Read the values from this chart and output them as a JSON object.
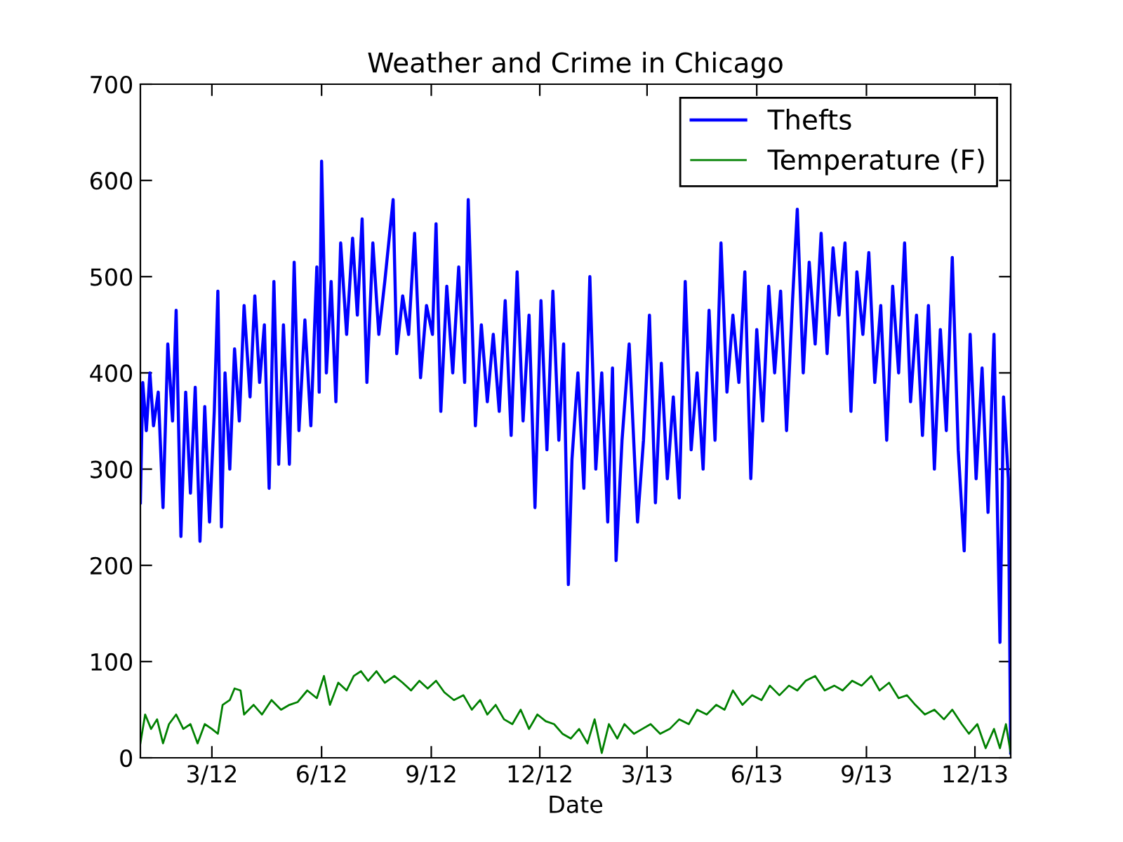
{
  "chart_data": {
    "type": "line",
    "title": "Weather and Crime in Chicago",
    "xlabel": "Date",
    "xlim": [
      "2012-01-01",
      "2013-12-31"
    ],
    "ylim": [
      0,
      700
    ],
    "yticks": [
      0,
      100,
      200,
      300,
      400,
      500,
      600,
      700
    ],
    "xticks": [
      {
        "value": "2012-03-01",
        "label": "3/12"
      },
      {
        "value": "2012-06-01",
        "label": "6/12"
      },
      {
        "value": "2012-09-01",
        "label": "9/12"
      },
      {
        "value": "2012-12-01",
        "label": "12/12"
      },
      {
        "value": "2013-03-01",
        "label": "3/13"
      },
      {
        "value": "2013-06-01",
        "label": "6/13"
      },
      {
        "value": "2013-09-01",
        "label": "9/13"
      },
      {
        "value": "2013-12-01",
        "label": "12/13"
      }
    ],
    "grid": false,
    "legend": "top right",
    "marker": "none",
    "line_style": "solid",
    "series": [
      {
        "name": "Thefts",
        "color": "#0000ff",
        "x": [
          "2012-01-01",
          "2012-01-03",
          "2012-01-06",
          "2012-01-09",
          "2012-01-12",
          "2012-01-16",
          "2012-01-20",
          "2012-01-24",
          "2012-01-28",
          "2012-01-31",
          "2012-02-04",
          "2012-02-08",
          "2012-02-12",
          "2012-02-16",
          "2012-02-20",
          "2012-02-24",
          "2012-02-28",
          "2012-03-03",
          "2012-03-06",
          "2012-03-09",
          "2012-03-12",
          "2012-03-16",
          "2012-03-20",
          "2012-03-24",
          "2012-03-28",
          "2012-04-02",
          "2012-04-06",
          "2012-04-10",
          "2012-04-14",
          "2012-04-18",
          "2012-04-22",
          "2012-04-26",
          "2012-04-30",
          "2012-05-05",
          "2012-05-09",
          "2012-05-13",
          "2012-05-18",
          "2012-05-23",
          "2012-05-28",
          "2012-05-30",
          "2012-06-01",
          "2012-06-05",
          "2012-06-09",
          "2012-06-13",
          "2012-06-17",
          "2012-06-22",
          "2012-06-27",
          "2012-07-01",
          "2012-07-05",
          "2012-07-09",
          "2012-07-14",
          "2012-07-19",
          "2012-07-24",
          "2012-07-31",
          "2012-08-03",
          "2012-08-08",
          "2012-08-13",
          "2012-08-18",
          "2012-08-23",
          "2012-08-28",
          "2012-09-02",
          "2012-09-05",
          "2012-09-09",
          "2012-09-14",
          "2012-09-19",
          "2012-09-24",
          "2012-09-29",
          "2012-10-02",
          "2012-10-08",
          "2012-10-13",
          "2012-10-18",
          "2012-10-23",
          "2012-10-28",
          "2012-11-02",
          "2012-11-07",
          "2012-11-12",
          "2012-11-17",
          "2012-11-22",
          "2012-11-27",
          "2012-12-02",
          "2012-12-07",
          "2012-12-12",
          "2012-12-17",
          "2012-12-21",
          "2012-12-25",
          "2012-12-28",
          "2013-01-02",
          "2013-01-07",
          "2013-01-12",
          "2013-01-17",
          "2013-01-22",
          "2013-01-27",
          "2013-01-31",
          "2013-02-03",
          "2013-02-08",
          "2013-02-14",
          "2013-02-21",
          "2013-02-26",
          "2013-03-03",
          "2013-03-08",
          "2013-03-13",
          "2013-03-18",
          "2013-03-23",
          "2013-03-28",
          "2013-04-02",
          "2013-04-07",
          "2013-04-12",
          "2013-04-17",
          "2013-04-22",
          "2013-04-27",
          "2013-05-02",
          "2013-05-07",
          "2013-05-12",
          "2013-05-17",
          "2013-05-22",
          "2013-05-27",
          "2013-06-01",
          "2013-06-06",
          "2013-06-11",
          "2013-06-16",
          "2013-06-21",
          "2013-06-26",
          "2013-07-01",
          "2013-07-05",
          "2013-07-10",
          "2013-07-15",
          "2013-07-20",
          "2013-07-25",
          "2013-07-30",
          "2013-08-04",
          "2013-08-09",
          "2013-08-14",
          "2013-08-19",
          "2013-08-24",
          "2013-08-29",
          "2013-09-03",
          "2013-09-08",
          "2013-09-13",
          "2013-09-18",
          "2013-09-23",
          "2013-09-28",
          "2013-10-03",
          "2013-10-08",
          "2013-10-13",
          "2013-10-18",
          "2013-10-23",
          "2013-10-28",
          "2013-11-02",
          "2013-11-07",
          "2013-11-12",
          "2013-11-17",
          "2013-11-22",
          "2013-11-27",
          "2013-12-02",
          "2013-12-07",
          "2013-12-12",
          "2013-12-17",
          "2013-12-22",
          "2013-12-25",
          "2013-12-29",
          "2013-12-31"
        ],
        "values": [
          265,
          390,
          340,
          400,
          345,
          380,
          260,
          430,
          350,
          465,
          230,
          380,
          275,
          385,
          225,
          365,
          245,
          360,
          485,
          240,
          400,
          300,
          425,
          350,
          470,
          375,
          480,
          390,
          450,
          280,
          495,
          305,
          450,
          305,
          515,
          340,
          455,
          345,
          510,
          380,
          620,
          400,
          495,
          370,
          535,
          440,
          540,
          460,
          560,
          390,
          535,
          440,
          495,
          580,
          420,
          480,
          440,
          545,
          395,
          470,
          440,
          555,
          360,
          490,
          400,
          510,
          390,
          580,
          345,
          450,
          370,
          440,
          360,
          475,
          335,
          505,
          350,
          460,
          260,
          475,
          320,
          485,
          330,
          430,
          180,
          310,
          400,
          280,
          500,
          300,
          400,
          245,
          405,
          205,
          330,
          430,
          245,
          330,
          460,
          265,
          410,
          290,
          375,
          270,
          495,
          320,
          400,
          300,
          465,
          330,
          535,
          380,
          460,
          390,
          505,
          290,
          445,
          350,
          490,
          400,
          485,
          340,
          475,
          570,
          400,
          515,
          430,
          545,
          420,
          530,
          460,
          535,
          360,
          505,
          440,
          525,
          390,
          470,
          330,
          490,
          400,
          535,
          370,
          460,
          335,
          470,
          300,
          445,
          340,
          520,
          320,
          215,
          440,
          290,
          405,
          255,
          440,
          120,
          375,
          290,
          5
        ]
      },
      {
        "name": "Temperature (F)",
        "color": "#008000",
        "x": [
          "2012-01-01",
          "2012-01-05",
          "2012-01-10",
          "2012-01-15",
          "2012-01-20",
          "2012-01-25",
          "2012-01-31",
          "2012-02-06",
          "2012-02-12",
          "2012-02-18",
          "2012-02-24",
          "2012-03-01",
          "2012-03-06",
          "2012-03-10",
          "2012-03-16",
          "2012-03-20",
          "2012-03-25",
          "2012-03-28",
          "2012-04-05",
          "2012-04-12",
          "2012-04-20",
          "2012-04-28",
          "2012-05-05",
          "2012-05-12",
          "2012-05-20",
          "2012-05-28",
          "2012-06-03",
          "2012-06-08",
          "2012-06-15",
          "2012-06-22",
          "2012-06-28",
          "2012-07-04",
          "2012-07-10",
          "2012-07-17",
          "2012-07-24",
          "2012-08-01",
          "2012-08-08",
          "2012-08-15",
          "2012-08-22",
          "2012-08-29",
          "2012-09-05",
          "2012-09-12",
          "2012-09-20",
          "2012-09-28",
          "2012-10-05",
          "2012-10-12",
          "2012-10-18",
          "2012-10-25",
          "2012-11-01",
          "2012-11-08",
          "2012-11-15",
          "2012-11-22",
          "2012-11-29",
          "2012-12-06",
          "2012-12-13",
          "2012-12-20",
          "2012-12-27",
          "2013-01-03",
          "2013-01-10",
          "2013-01-16",
          "2013-01-22",
          "2013-01-28",
          "2013-02-04",
          "2013-02-10",
          "2013-02-18",
          "2013-02-25",
          "2013-03-04",
          "2013-03-12",
          "2013-03-20",
          "2013-03-28",
          "2013-04-05",
          "2013-04-12",
          "2013-04-20",
          "2013-04-28",
          "2013-05-05",
          "2013-05-12",
          "2013-05-20",
          "2013-05-28",
          "2013-06-05",
          "2013-06-12",
          "2013-06-20",
          "2013-06-28",
          "2013-07-05",
          "2013-07-12",
          "2013-07-20",
          "2013-07-28",
          "2013-08-05",
          "2013-08-12",
          "2013-08-20",
          "2013-08-28",
          "2013-09-05",
          "2013-09-12",
          "2013-09-20",
          "2013-09-28",
          "2013-10-05",
          "2013-10-12",
          "2013-10-20",
          "2013-10-28",
          "2013-11-05",
          "2013-11-12",
          "2013-11-20",
          "2013-11-26",
          "2013-12-03",
          "2013-12-10",
          "2013-12-17",
          "2013-12-22",
          "2013-12-27",
          "2013-12-31"
        ],
        "values": [
          15,
          45,
          30,
          40,
          15,
          35,
          45,
          30,
          35,
          15,
          35,
          30,
          25,
          55,
          60,
          72,
          70,
          45,
          55,
          45,
          60,
          50,
          55,
          58,
          70,
          62,
          85,
          55,
          78,
          70,
          85,
          90,
          80,
          90,
          78,
          85,
          78,
          70,
          80,
          72,
          80,
          68,
          60,
          65,
          50,
          60,
          45,
          55,
          40,
          35,
          50,
          30,
          45,
          38,
          35,
          25,
          20,
          30,
          15,
          40,
          5,
          35,
          20,
          35,
          25,
          30,
          35,
          25,
          30,
          40,
          35,
          50,
          45,
          55,
          50,
          70,
          55,
          65,
          60,
          75,
          65,
          75,
          70,
          80,
          85,
          70,
          75,
          70,
          80,
          75,
          85,
          70,
          78,
          62,
          65,
          55,
          45,
          50,
          40,
          50,
          35,
          25,
          35,
          10,
          30,
          10,
          35,
          5
        ]
      }
    ]
  }
}
